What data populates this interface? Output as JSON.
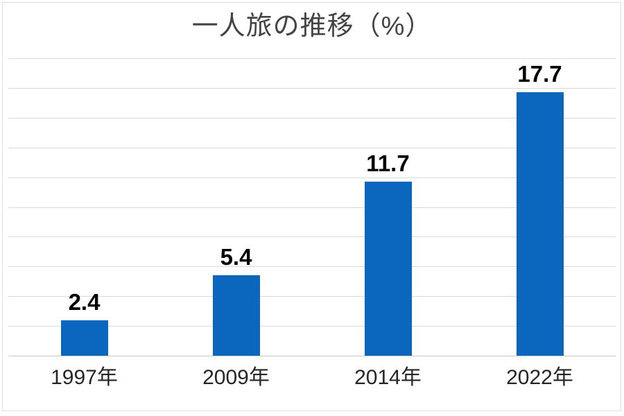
{
  "chart_data": {
    "type": "bar",
    "title": "一人旅の推移（%）",
    "categories": [
      "1997年",
      "2009年",
      "2014年",
      "2022年"
    ],
    "values": [
      2.4,
      5.4,
      11.7,
      17.7
    ],
    "value_labels": [
      "2.4",
      "5.4",
      "11.7",
      "17.7"
    ],
    "xlabel": "",
    "ylabel": "",
    "ylim": [
      0,
      20
    ],
    "gridline_interval": 2,
    "grid": true,
    "legend": false,
    "colors": {
      "bar": "#0B66BE",
      "gridline": "#D9D9D9",
      "axis_line": "#C9C9C9",
      "value_label": "#000000",
      "tick_label": "#262626",
      "title": "#444444",
      "background": "#FFFFFF"
    }
  }
}
